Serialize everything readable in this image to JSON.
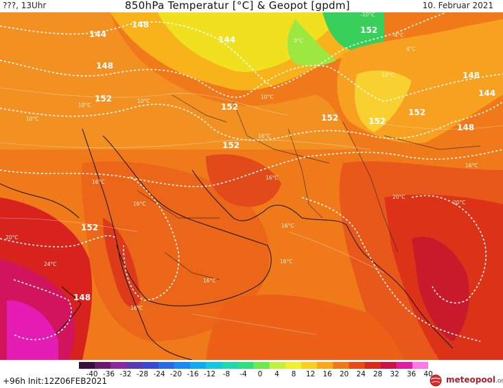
{
  "header": {
    "left": "???, 13Uhr",
    "title": "850hPa Temperatur [°C] & Geopot [gpdm]",
    "date": "10. Februar 2021"
  },
  "footer": {
    "run_info": "+96h  Init:12Z06FEB2021",
    "logo": "meteopool",
    "logo_suffix": ".org"
  },
  "colorbar": {
    "labels": [
      "-40",
      "-36",
      "-32",
      "-28",
      "-24",
      "-20",
      "-16",
      "-12",
      "-8",
      "-4",
      "0",
      "4",
      "8",
      "12",
      "16",
      "20",
      "24",
      "28",
      "32",
      "36",
      "40"
    ],
    "colors": [
      "#3a0f3a",
      "#6a1a6a",
      "#8a2a9a",
      "#5a3ab0",
      "#3a4ad0",
      "#2a6ae0",
      "#1a8af0",
      "#10aaf0",
      "#10c8e0",
      "#20d8b0",
      "#30e080",
      "#70e850",
      "#c0f040",
      "#f0f030",
      "#f8d020",
      "#f8a818",
      "#f07818",
      "#e84a18",
      "#d82820",
      "#c8144a",
      "#e01ca0",
      "#ff7ae8"
    ]
  },
  "geopotential_labels": [
    {
      "text": "144"
    },
    {
      "text": "148"
    },
    {
      "text": "144"
    },
    {
      "text": "148"
    },
    {
      "text": "152"
    },
    {
      "text": "152"
    },
    {
      "text": "152"
    },
    {
      "text": "152"
    },
    {
      "text": "152"
    },
    {
      "text": "148"
    },
    {
      "text": "144"
    },
    {
      "text": "152"
    },
    {
      "text": "148"
    },
    {
      "text": "152"
    },
    {
      "text": "152"
    },
    {
      "text": "148"
    }
  ],
  "temperature_labels": [
    {
      "text": "-10°C"
    },
    {
      "text": "0°C"
    },
    {
      "text": "-4°C"
    },
    {
      "text": "4°C"
    },
    {
      "text": "10°C"
    },
    {
      "text": "10°C"
    },
    {
      "text": "10°C"
    },
    {
      "text": "10°C"
    },
    {
      "text": "10°C"
    },
    {
      "text": "16°C"
    },
    {
      "text": "16°C"
    },
    {
      "text": "16°C"
    },
    {
      "text": "16°C"
    },
    {
      "text": "20°C"
    },
    {
      "text": "20°C"
    },
    {
      "text": "20°C"
    },
    {
      "text": "16°C"
    },
    {
      "text": "24°C"
    },
    {
      "text": "16°C"
    },
    {
      "text": "16°C"
    },
    {
      "text": "16°C"
    },
    {
      "text": "16°C"
    }
  ]
}
